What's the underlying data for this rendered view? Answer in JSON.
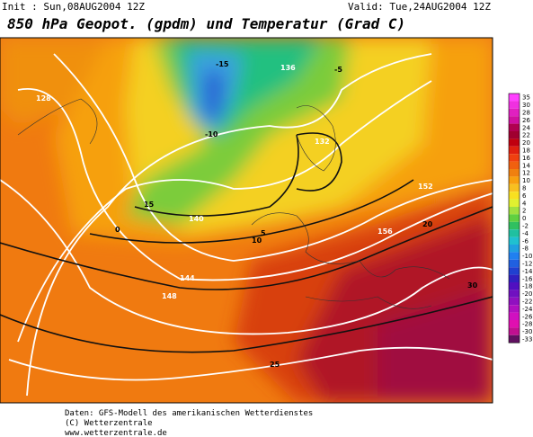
{
  "header": {
    "init": "Init : Sun,08AUG2004 12Z",
    "valid": "Valid: Tue,24AUG2004 12Z",
    "title": "850 hPa Geopot. (gpdm) und Temperatur (Grad C)"
  },
  "legend": {
    "values": [
      35,
      30,
      28,
      26,
      24,
      22,
      20,
      18,
      16,
      14,
      12,
      10,
      8,
      6,
      4,
      2,
      0,
      -2,
      -4,
      -6,
      -8,
      -10,
      -12,
      -14,
      -16,
      -18,
      -20,
      -22,
      -24,
      -26,
      -28,
      -30,
      -33
    ]
  },
  "map": {
    "contour_labels": [
      "-15",
      "-10",
      "-5",
      "0",
      "5",
      "10",
      "15",
      "20",
      "25",
      "30",
      "128",
      "132",
      "136",
      "140",
      "144",
      "148",
      "152",
      "156"
    ]
  },
  "footer": {
    "lines": [
      "Daten: GFS-Modell des amerikanischen Wetterdienstes",
      "(C) Wetterzentrale",
      "www.wetterzentrale.de"
    ]
  }
}
